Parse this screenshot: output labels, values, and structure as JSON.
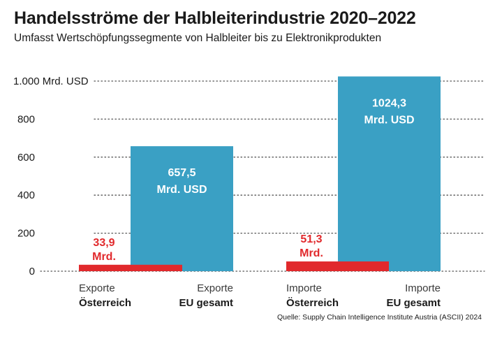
{
  "chart_data": {
    "type": "bar",
    "title": "Handelsströme der Halbleiterindustrie 2020–2022",
    "subtitle": "Umfasst Wertschöpfungssegmente von Halbleiter bis zu Elektronikprodukten",
    "ylabel": "",
    "xlabel": "",
    "ylim": [
      0,
      1000
    ],
    "grid": true,
    "yticks": [
      {
        "value": 0,
        "label": "0"
      },
      {
        "value": 200,
        "label": "200"
      },
      {
        "value": 400,
        "label": "400"
      },
      {
        "value": 600,
        "label": "600"
      },
      {
        "value": 800,
        "label": "800"
      },
      {
        "value": 1000,
        "label": "1.000 Mrd. USD"
      }
    ],
    "bars": [
      {
        "name": "exporte-oesterreich",
        "line1": "Exporte",
        "line2": "Österreich",
        "value": 33.9,
        "label_line1": "33,9",
        "label_line2": "Mrd.",
        "color": "#e1292c",
        "group": 0,
        "side": "left"
      },
      {
        "name": "exporte-eu",
        "line1": "Exporte",
        "line2": "EU gesamt",
        "value": 657.5,
        "label_line1": "657,5",
        "label_line2": "Mrd. USD",
        "color": "#3aa0c4",
        "group": 0,
        "side": "right"
      },
      {
        "name": "importe-oesterreich",
        "line1": "Importe",
        "line2": "Österreich",
        "value": 51.3,
        "label_line1": "51,3",
        "label_line2": "Mrd.",
        "color": "#e1292c",
        "group": 1,
        "side": "left"
      },
      {
        "name": "importe-eu",
        "line1": "Importe",
        "line2": "EU gesamt",
        "value": 1024.3,
        "label_line1": "1024,3",
        "label_line2": "Mrd. USD",
        "color": "#3aa0c4",
        "group": 1,
        "side": "right"
      }
    ],
    "source": "Quelle: Supply Chain Intelligence Institute Austria (ASCII) 2024"
  }
}
